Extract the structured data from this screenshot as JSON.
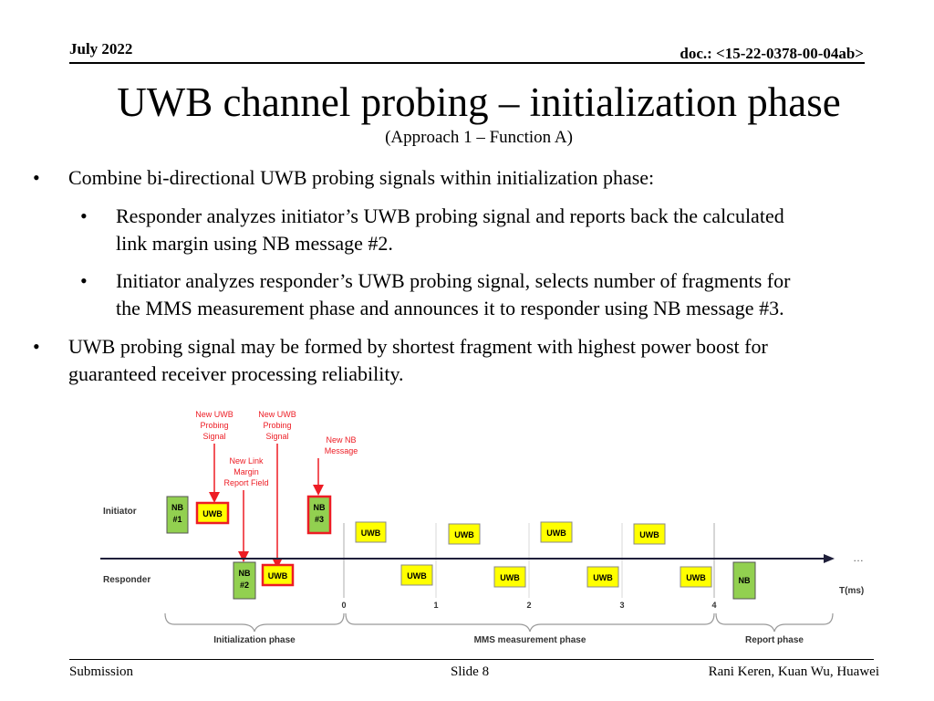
{
  "header": {
    "date": "July 2022",
    "doc": "doc.: <15-22-0378-00-04ab>"
  },
  "title": "UWB channel probing – initialization phase",
  "subtitle": "(Approach 1 – Function A)",
  "bullets": {
    "b1": "Combine bi-directional UWB probing signals within initialization phase:",
    "b1a_line1": "Responder analyzes initiator’s UWB probing signal and reports back the calculated",
    "b1a_line2": "link margin using NB message #2.",
    "b1b_line1": "Initiator analyzes responder’s UWB probing signal, selects number of fragments for",
    "b1b_line2": "the MMS measurement phase and announces it to responder using NB message #3.",
    "b2_line1": "UWB probing signal may be formed by shortest fragment with highest power boost for",
    "b2_line2": "guaranteed receiver processing reliability."
  },
  "diagram": {
    "annotations": {
      "uwb1": [
        "New UWB",
        "Probing",
        "Signal"
      ],
      "uwb2": [
        "New UWB",
        "Probing",
        "Signal"
      ],
      "nb": [
        "New NB",
        "Message"
      ],
      "link": [
        "New Link",
        "Margin",
        "Report Field"
      ]
    },
    "row_initiator": "Initiator",
    "row_responder": "Responder",
    "nb1": [
      "NB",
      "#1"
    ],
    "nb2": [
      "NB",
      "#2"
    ],
    "nb3": [
      "NB",
      "#3"
    ],
    "nb_last": "NB",
    "uwb": "UWB",
    "ticks": [
      "0",
      "1",
      "2",
      "3",
      "4"
    ],
    "axis_label": "T(ms)",
    "ellipsis": "…",
    "phases": {
      "init": "Initialization phase",
      "mms": "MMS measurement phase",
      "report": "Report phase"
    },
    "colors": {
      "red": "#ED1C24",
      "yellow": "#FFFF00",
      "green": "#92D050"
    }
  },
  "footer": {
    "left": "Submission",
    "center": "Slide 8",
    "right": "Rani Keren, Kuan Wu, Huawei"
  }
}
